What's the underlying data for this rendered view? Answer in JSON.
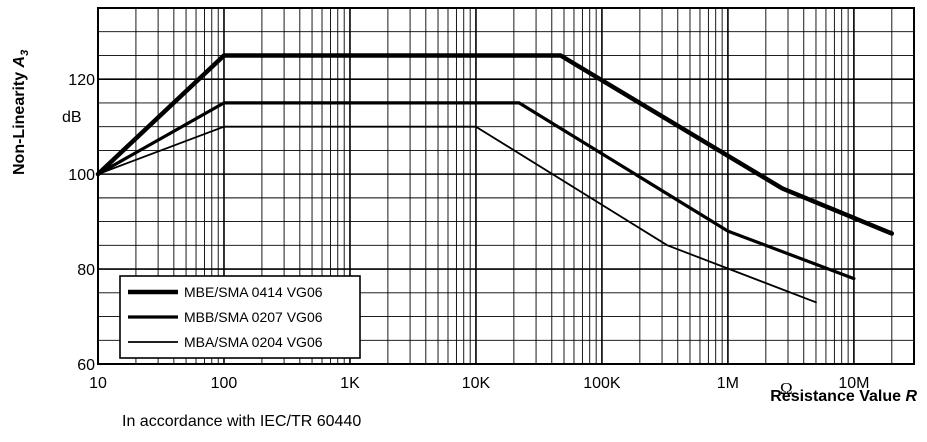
{
  "chart_data": {
    "type": "line",
    "title": "",
    "xlabel": "Resistance Value R",
    "xlabel_main": "Resistance Value ",
    "xlabel_var": "R",
    "x_unit": "Ω",
    "ylabel": "Non-Linearity A3",
    "ylabel_main": "Non-Linearity ",
    "ylabel_var": "A",
    "ylabel_sub": "3",
    "y_unit": "dB",
    "x_scale": "log",
    "xlim": [
      10,
      30000000
    ],
    "ylim": [
      60,
      135
    ],
    "x_ticks": [
      {
        "value": 10,
        "label": "10"
      },
      {
        "value": 100,
        "label": "100"
      },
      {
        "value": 1000,
        "label": "1K"
      },
      {
        "value": 10000,
        "label": "10K"
      },
      {
        "value": 100000,
        "label": "100K"
      },
      {
        "value": 1000000,
        "label": "1M"
      },
      {
        "value": 10000000,
        "label": "10M"
      }
    ],
    "y_ticks": [
      {
        "value": 60,
        "label": "60"
      },
      {
        "value": 80,
        "label": "80"
      },
      {
        "value": 100,
        "label": "100"
      },
      {
        "value": 120,
        "label": "120"
      }
    ],
    "grid": true,
    "legend_position": "bottom-left",
    "series": [
      {
        "name": "MBE/SMA 0414 VG06",
        "points": [
          [
            10,
            100
          ],
          [
            100,
            125
          ],
          [
            47000,
            125
          ],
          [
            2700000,
            97
          ],
          [
            20000000,
            87.5
          ]
        ]
      },
      {
        "name": "MBB/SMA 0207 VG06",
        "points": [
          [
            10,
            100
          ],
          [
            100,
            115
          ],
          [
            22000,
            115
          ],
          [
            1000000,
            88
          ],
          [
            10000000,
            78
          ]
        ]
      },
      {
        "name": "MBA/SMA 0204 VG06",
        "points": [
          [
            10,
            100
          ],
          [
            100,
            110
          ],
          [
            10000,
            110
          ],
          [
            330000,
            85
          ],
          [
            5000000,
            73
          ]
        ]
      }
    ],
    "note": "In accordance with IEC/TR 60440"
  }
}
